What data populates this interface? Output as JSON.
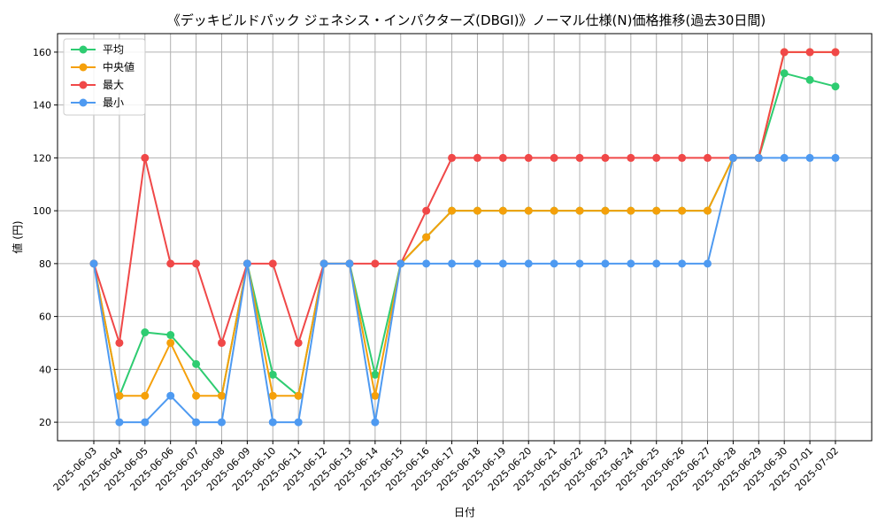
{
  "chart_data": {
    "type": "line",
    "title": "《デッキビルドパック ジェネシス・インパクターズ(DBGI)》ノーマル仕様(N)価格推移(過去30日間)",
    "xlabel": "日付",
    "ylabel": "値 (円)",
    "ylim": [
      13,
      167
    ],
    "yticks": [
      20,
      40,
      60,
      80,
      100,
      120,
      140,
      160
    ],
    "grid": true,
    "legend_position": "top-left",
    "categories": [
      "2025-06-03",
      "2025-06-04",
      "2025-06-05",
      "2025-06-06",
      "2025-06-07",
      "2025-06-08",
      "2025-06-09",
      "2025-06-10",
      "2025-06-11",
      "2025-06-12",
      "2025-06-13",
      "2025-06-14",
      "2025-06-15",
      "2025-06-16",
      "2025-06-17",
      "2025-06-18",
      "2025-06-19",
      "2025-06-20",
      "2025-06-21",
      "2025-06-22",
      "2025-06-23",
      "2025-06-24",
      "2025-06-25",
      "2025-06-26",
      "2025-06-27",
      "2025-06-28",
      "2025-06-29",
      "2025-06-30",
      "2025-07-01",
      "2025-07-02"
    ],
    "series": [
      {
        "name": "平均",
        "color": "#2ecc71",
        "values": [
          80,
          30,
          54,
          53,
          42,
          30,
          80,
          38,
          30,
          80,
          80,
          38,
          80,
          90,
          100,
          100,
          100,
          100,
          100,
          100,
          100,
          100,
          100,
          100,
          100,
          120,
          120,
          152,
          149.5,
          147
        ]
      },
      {
        "name": "中央値",
        "color": "#f5a00a",
        "values": [
          80,
          30,
          30,
          50,
          30,
          30,
          80,
          30,
          30,
          80,
          80,
          30,
          80,
          90,
          100,
          100,
          100,
          100,
          100,
          100,
          100,
          100,
          100,
          100,
          100,
          120,
          120,
          160,
          160,
          160
        ]
      },
      {
        "name": "最大",
        "color": "#f04848",
        "values": [
          80,
          50,
          120,
          80,
          80,
          50,
          80,
          80,
          50,
          80,
          80,
          80,
          80,
          100,
          120,
          120,
          120,
          120,
          120,
          120,
          120,
          120,
          120,
          120,
          120,
          120,
          120,
          160,
          160,
          160
        ]
      },
      {
        "name": "最小",
        "color": "#4e9af1",
        "values": [
          80,
          20,
          20,
          30,
          20,
          20,
          80,
          20,
          20,
          80,
          80,
          20,
          80,
          80,
          80,
          80,
          80,
          80,
          80,
          80,
          80,
          80,
          80,
          80,
          80,
          120,
          120,
          120,
          120,
          120
        ]
      }
    ]
  }
}
